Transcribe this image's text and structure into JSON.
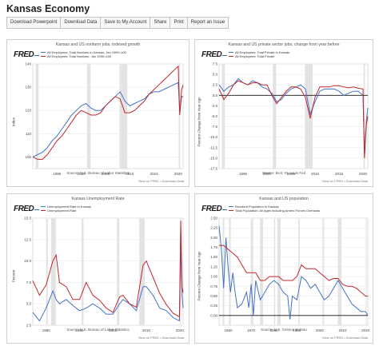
{
  "page": {
    "title": "Kansas Economy"
  },
  "toolbar": {
    "buttons": [
      "Download Powerpoint",
      "Download Data",
      "Save to My Account",
      "Share",
      "Print",
      "Report an Issue"
    ]
  },
  "fred": {
    "logo": "FRED"
  },
  "colors": {
    "series_blue": "#4472c4",
    "series_red": "#c0272d",
    "recession": "#e3e3e3"
  },
  "charts": [
    {
      "title": "Kansas and US nonfarm jobs, indexed growth",
      "legend": [
        "All Employees: Total Nonfarm in Kansas, Jan 1990=100",
        "All Employees: Total Nonfarm, Jan 1990=100"
      ],
      "ylabel": "Index",
      "source": "Source: U.S. Bureau of Labor Statistics",
      "viewmore": "View on FRED • Download Data"
    },
    {
      "title": "Kansas and US private sector jobs, change from year before",
      "legend": [
        "All Employees: Total Private in Kansas",
        "All Employees: Total Private"
      ],
      "ylabel": "Percent Change from Year Ago",
      "source": "Source: BLS; St. Louis Fed",
      "viewmore": "View on FRED • Download Data"
    },
    {
      "title": "Kansas Unemployment Rate",
      "legend": [
        "Unemployment Rate in Kansas",
        "Unemployment Rate"
      ],
      "ylabel": "Percent",
      "source": "Source: U.S. Bureau of Labor Statistics",
      "viewmore": "View on FRED • Download Data"
    },
    {
      "title": "Kansas and US population",
      "legend": [
        "Resident Population in Kansas",
        "Total Population: All Ages including Armed Forces Overseas"
      ],
      "ylabel": "Percent Change from Year Ago",
      "source": "Source: U.S. Census Bureau",
      "viewmore": "View on FRED • Download Data"
    }
  ],
  "chart_data": [
    {
      "type": "line",
      "title": "Kansas and US nonfarm jobs, indexed growth",
      "ylabel": "Index",
      "ylim": [
        95,
        140
      ],
      "yticks": [
        100,
        110,
        120,
        130,
        140
      ],
      "xlim": [
        1990,
        2021
      ],
      "xticks": [
        1995,
        2000,
        2005,
        2010,
        2015,
        2020
      ],
      "recessions": [
        [
          1990.6,
          1991.2
        ],
        [
          2001.2,
          2001.9
        ],
        [
          2007.9,
          2009.5
        ],
        [
          2020.1,
          2020.4
        ]
      ],
      "series": [
        {
          "name": "All Employees: Total Nonfarm in Kansas, Jan 1990=100",
          "color": "#4472c4",
          "x": [
            1990,
            1991,
            1992,
            1993,
            1994,
            1995,
            1996,
            1997,
            1998,
            1999,
            2000,
            2001,
            2002,
            2003,
            2004,
            2005,
            2006,
            2007,
            2008,
            2009,
            2010,
            2011,
            2012,
            2013,
            2014,
            2015,
            2016,
            2017,
            2018,
            2019,
            2020,
            2020.3,
            2020.7,
            2021
          ],
          "y": [
            100,
            101,
            102,
            104,
            107,
            109,
            112,
            115,
            118,
            120,
            122,
            123,
            121,
            120,
            120,
            122,
            124,
            126,
            128,
            124,
            122,
            123,
            124,
            125,
            127,
            128,
            128,
            129,
            130,
            131,
            132,
            119,
            126,
            126
          ]
        },
        {
          "name": "All Employees: Total Nonfarm, Jan 1990=100",
          "color": "#c0272d",
          "x": [
            1990,
            1991,
            1992,
            1993,
            1994,
            1995,
            1996,
            1997,
            1998,
            1999,
            2000,
            2001,
            2002,
            2003,
            2004,
            2005,
            2006,
            2007,
            2008,
            2009,
            2010,
            2011,
            2012,
            2013,
            2014,
            2015,
            2016,
            2017,
            2018,
            2019,
            2020,
            2020.3,
            2020.7,
            2021
          ],
          "y": [
            100,
            99,
            99,
            101,
            104,
            107,
            109,
            112,
            115,
            118,
            120,
            119,
            118,
            118,
            119,
            122,
            124,
            126,
            125,
            119,
            119,
            120,
            122,
            124,
            127,
            129,
            131,
            133,
            135,
            137,
            139,
            118,
            129,
            131
          ]
        }
      ]
    },
    {
      "type": "line",
      "title": "Kansas and US private sector jobs, change from year before",
      "ylabel": "Percent Change from Year Ago",
      "ylim": [
        -17.5,
        7.5
      ],
      "yticks": [
        -17.5,
        -15.0,
        -12.5,
        -10.0,
        -7.5,
        -5.0,
        -2.5,
        0.0,
        2.5,
        5.0,
        7.5
      ],
      "xlim": [
        1990,
        2021
      ],
      "xticks": [
        1995,
        2000,
        2005,
        2010,
        2015,
        2020
      ],
      "recessions": [
        [
          1990.6,
          1991.2
        ],
        [
          2001.2,
          2001.9
        ],
        [
          2007.9,
          2009.5
        ],
        [
          2020.1,
          2020.4
        ]
      ],
      "series": [
        {
          "name": "All Employees: Total Private in Kansas",
          "color": "#4472c4",
          "x": [
            1990,
            1991,
            1992,
            1993,
            1994,
            1995,
            1996,
            1997,
            1998,
            1999,
            2000,
            2001,
            2002,
            2003,
            2004,
            2005,
            2006,
            2007,
            2008,
            2009,
            2010,
            2011,
            2012,
            2013,
            2014,
            2015,
            2016,
            2017,
            2018,
            2019,
            2020,
            2020.3,
            2020.7,
            2021
          ],
          "y": [
            2.5,
            1.0,
            2.0,
            2.5,
            4.0,
            3.0,
            2.5,
            3.5,
            3.0,
            2.0,
            1.5,
            0.5,
            -1.5,
            -1.0,
            0.5,
            1.5,
            2.0,
            2.5,
            1.5,
            -4.5,
            -1.5,
            1.0,
            1.5,
            1.5,
            1.5,
            1.0,
            0.0,
            0.5,
            1.0,
            1.0,
            0.0,
            -14.0,
            -6.0,
            -3.0
          ]
        },
        {
          "name": "All Employees: Total Private",
          "color": "#c0272d",
          "x": [
            1990,
            1991,
            1992,
            1993,
            1994,
            1995,
            1996,
            1997,
            1998,
            1999,
            2000,
            2001,
            2002,
            2003,
            2004,
            2005,
            2006,
            2007,
            2008,
            2009,
            2010,
            2011,
            2012,
            2013,
            2014,
            2015,
            2016,
            2017,
            2018,
            2019,
            2020,
            2020.3,
            2020.7,
            2021
          ],
          "y": [
            1.5,
            -1.0,
            0.5,
            2.5,
            3.5,
            3.0,
            2.5,
            3.0,
            3.0,
            2.5,
            2.5,
            0.0,
            -2.0,
            -0.5,
            1.0,
            2.0,
            2.0,
            1.5,
            -0.5,
            -5.5,
            -0.5,
            2.0,
            2.0,
            2.0,
            2.3,
            2.3,
            2.0,
            1.8,
            2.0,
            1.7,
            1.5,
            -15.0,
            -7.0,
            -5.0
          ]
        }
      ]
    },
    {
      "type": "line",
      "title": "Kansas Unemployment Rate",
      "ylabel": "Percent",
      "ylim": [
        2.5,
        15.0
      ],
      "yticks": [
        2.5,
        5.0,
        7.5,
        10.0,
        12.5,
        15.0
      ],
      "xlim": [
        1976,
        2021
      ],
      "xticks": [
        1980,
        1990,
        2000,
        2010,
        2020
      ],
      "recessions": [
        [
          1980.0,
          1980.5
        ],
        [
          1981.5,
          1982.9
        ],
        [
          1990.6,
          1991.2
        ],
        [
          2001.2,
          2001.9
        ],
        [
          2007.9,
          2009.5
        ],
        [
          2020.1,
          2020.4
        ]
      ],
      "series": [
        {
          "name": "Unemployment Rate in Kansas",
          "color": "#4472c4",
          "x": [
            1976,
            1978,
            1980,
            1982,
            1983,
            1984,
            1986,
            1988,
            1990,
            1992,
            1994,
            1996,
            1998,
            2000,
            2002,
            2003,
            2005,
            2007,
            2009,
            2010,
            2012,
            2014,
            2016,
            2018,
            2019.9,
            2020.3,
            2020.7,
            2021
          ],
          "y": [
            4.0,
            3.0,
            4.5,
            6.5,
            5.5,
            5.0,
            5.5,
            4.8,
            4.2,
            4.5,
            5.0,
            4.5,
            3.8,
            3.8,
            5.0,
            5.5,
            5.0,
            4.2,
            7.0,
            7.0,
            6.0,
            4.5,
            4.2,
            3.4,
            3.0,
            12.0,
            6.0,
            4.5
          ]
        },
        {
          "name": "Unemployment Rate",
          "color": "#c0272d",
          "x": [
            1976,
            1978,
            1980,
            1982,
            1983,
            1984,
            1986,
            1988,
            1990,
            1992,
            1994,
            1996,
            1998,
            2000,
            2002,
            2003,
            2005,
            2007,
            2009,
            2010,
            2012,
            2014,
            2016,
            2018,
            2019.9,
            2020.3,
            2020.7,
            2021
          ],
          "y": [
            7.7,
            6.0,
            7.2,
            10.0,
            10.7,
            7.5,
            7.0,
            5.5,
            5.5,
            7.5,
            6.0,
            5.4,
            4.5,
            4.0,
            5.8,
            6.0,
            5.0,
            4.6,
            9.5,
            10.0,
            8.1,
            6.2,
            4.9,
            3.9,
            3.5,
            14.7,
            7.0,
            6.3
          ]
        }
      ]
    },
    {
      "type": "line",
      "title": "Kansas and US population",
      "ylabel": "Percent Change from Year Ago",
      "ylim": [
        -0.25,
        2.5
      ],
      "yticks": [
        0.0,
        0.25,
        0.5,
        0.75,
        1.0,
        1.25,
        1.5,
        1.75,
        2.0,
        2.25,
        2.5
      ],
      "xlim": [
        1956,
        2021
      ],
      "xticks": [
        1960,
        1970,
        1980,
        1990,
        2000,
        2010,
        2020
      ],
      "recessions": [
        [
          1957.6,
          1958.3
        ],
        [
          1960.3,
          1961.1
        ],
        [
          1969.9,
          1970.9
        ],
        [
          1973.9,
          1975.2
        ],
        [
          1980.0,
          1980.5
        ],
        [
          1981.5,
          1982.9
        ],
        [
          1990.6,
          1991.2
        ],
        [
          2001.2,
          2001.9
        ],
        [
          2007.9,
          2009.5
        ],
        [
          2020.1,
          2020.4
        ]
      ],
      "series": [
        {
          "name": "Resident Population in Kansas",
          "color": "#4472c4",
          "x": [
            1956,
            1957,
            1958,
            1959,
            1960,
            1961,
            1962,
            1963,
            1964,
            1966,
            1968,
            1969,
            1970,
            1971,
            1972,
            1974,
            1976,
            1978,
            1980,
            1982,
            1984,
            1986,
            1987,
            1988,
            1990,
            1992,
            1994,
            1996,
            1998,
            2000,
            2002,
            2004,
            2006,
            2008,
            2010,
            2012,
            2014,
            2016,
            2018,
            2020,
            2021
          ],
          "y": [
            2.3,
            1.7,
            0.7,
            2.0,
            1.2,
            0.6,
            1.1,
            0.6,
            0.2,
            0.3,
            0.6,
            0.2,
            0.8,
            0.0,
            0.9,
            0.4,
            0.6,
            0.8,
            0.9,
            0.8,
            0.6,
            0.5,
            -0.1,
            0.5,
            0.4,
            1.0,
            0.9,
            0.7,
            0.8,
            0.6,
            0.4,
            0.5,
            0.7,
            0.9,
            0.7,
            0.5,
            0.3,
            0.2,
            0.1,
            0.1,
            0.0
          ]
        },
        {
          "name": "Total Population: All Ages including Armed Forces Overseas",
          "color": "#c0272d",
          "x": [
            1956,
            1958,
            1960,
            1962,
            1964,
            1966,
            1968,
            1970,
            1972,
            1974,
            1976,
            1978,
            1980,
            1982,
            1984,
            1986,
            1988,
            1990,
            1992,
            1994,
            1996,
            1998,
            2000,
            2002,
            2004,
            2006,
            2008,
            2010,
            2012,
            2014,
            2016,
            2018,
            2020,
            2021
          ],
          "y": [
            1.8,
            1.8,
            1.7,
            1.6,
            1.5,
            1.3,
            1.1,
            1.1,
            1.1,
            0.9,
            0.9,
            1.0,
            1.0,
            1.0,
            0.9,
            0.9,
            0.9,
            1.0,
            1.3,
            1.2,
            1.2,
            1.2,
            1.1,
            1.0,
            0.9,
            0.95,
            0.95,
            0.8,
            0.75,
            0.75,
            0.7,
            0.6,
            0.5,
            0.5
          ]
        }
      ]
    }
  ]
}
